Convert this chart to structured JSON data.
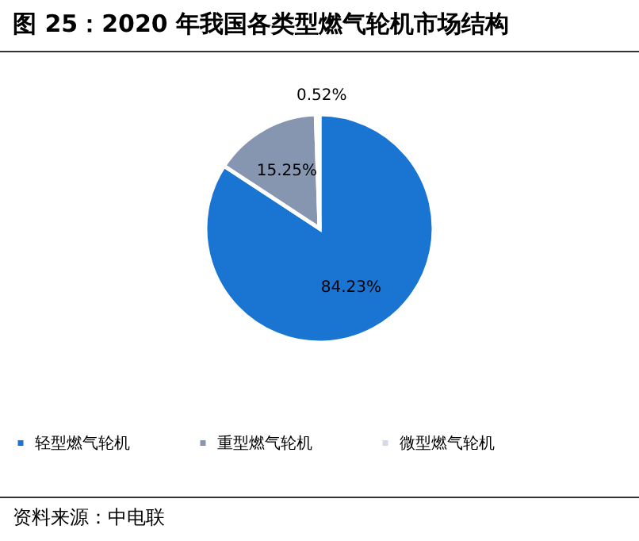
{
  "chart_data": {
    "type": "pie",
    "title": "图 25：2020 年我国各类型燃气轮机市场结构",
    "categories": [
      "轻型燃气轮机",
      "重型燃气轮机",
      "微型燃气轮机"
    ],
    "values": [
      84.23,
      15.25,
      0.52
    ],
    "colors": [
      "#1a75d2",
      "#8796b0",
      "#d5dbe6"
    ],
    "value_labels": [
      "84.23%",
      "15.25%",
      "0.52%"
    ],
    "legend": "bottom",
    "annotations": [
      "资料来源：中电联"
    ]
  }
}
